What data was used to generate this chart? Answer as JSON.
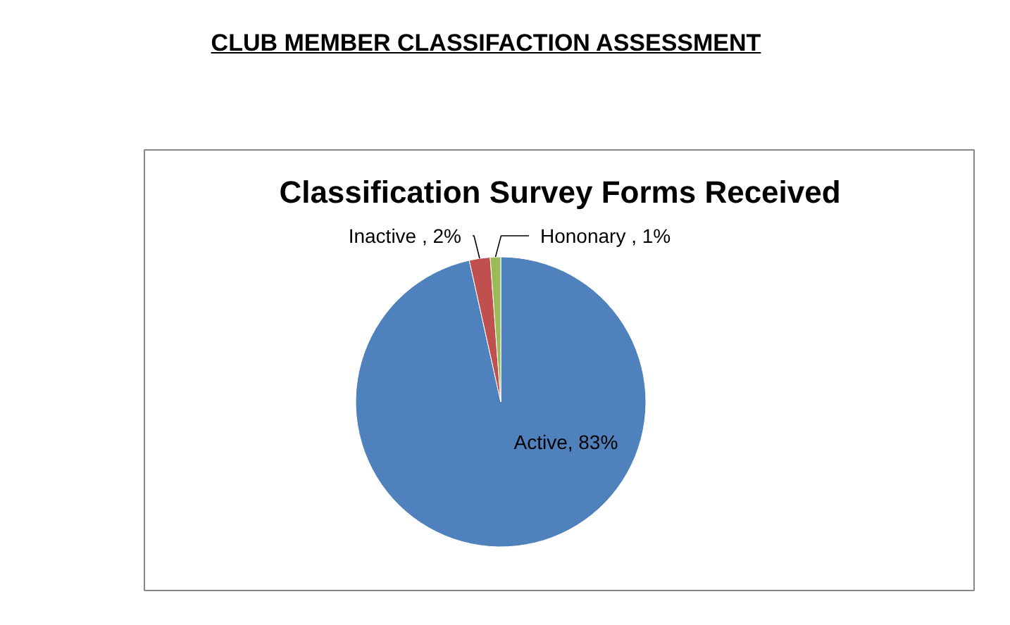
{
  "chart_data": {
    "type": "pie",
    "title": "Classification Survey Forms Received",
    "annotations": [
      "CLUB MEMBER CLASSIFACTION ASSESSMENT"
    ],
    "categories": [
      "Active",
      "Inactive ",
      "Hononary "
    ],
    "values": [
      83,
      2,
      1
    ],
    "colors": [
      "#4f81bd",
      "#c0504d",
      "#9bbb59"
    ],
    "value_labels": [
      "83%",
      "2%",
      "1%"
    ]
  }
}
